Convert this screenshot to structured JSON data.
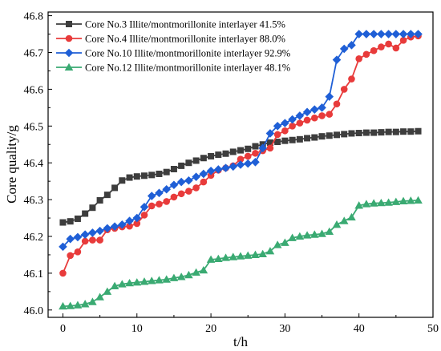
{
  "chart_data": {
    "type": "line",
    "xlabel": "t/h",
    "ylabel": "Core quality/g",
    "xlim": [
      -2,
      50
    ],
    "ylim": [
      45.98,
      46.81
    ],
    "xticks": [
      0,
      10,
      20,
      30,
      40,
      50
    ],
    "yticks": [
      46.0,
      46.1,
      46.2,
      46.3,
      46.4,
      46.5,
      46.6,
      46.7,
      46.8
    ],
    "xtick_labels": [
      "0",
      "10",
      "20",
      "30",
      "40",
      "50"
    ],
    "ytick_labels": [
      "46.0",
      "46.1",
      "46.2",
      "46.3",
      "46.4",
      "46.5",
      "46.6",
      "46.7",
      "46.8"
    ],
    "grid": false,
    "legend_position": "top-left",
    "x": [
      0,
      1,
      2,
      3,
      4,
      5,
      6,
      7,
      8,
      9,
      10,
      11,
      12,
      13,
      14,
      15,
      16,
      17,
      18,
      19,
      20,
      21,
      22,
      23,
      24,
      25,
      26,
      27,
      28,
      29,
      30,
      31,
      32,
      33,
      34,
      35,
      36,
      37,
      38,
      39,
      40,
      41,
      42,
      43,
      44,
      45,
      46,
      47,
      48
    ],
    "series": [
      {
        "name": "Core No.3  Illite/montmorillonite interlayer 41.5%",
        "color": "#3d3d3d",
        "marker": "square",
        "values": [
          46.238,
          46.241,
          46.248,
          46.262,
          46.278,
          46.298,
          46.313,
          46.332,
          46.352,
          46.36,
          46.363,
          46.365,
          46.367,
          46.37,
          46.375,
          46.383,
          46.392,
          46.4,
          46.406,
          46.413,
          46.418,
          46.422,
          46.425,
          46.43,
          46.434,
          46.438,
          46.445,
          46.45,
          46.455,
          46.457,
          46.46,
          46.462,
          46.464,
          46.467,
          46.469,
          46.472,
          46.474,
          46.476,
          46.478,
          46.48,
          46.481,
          46.482,
          46.482,
          46.483,
          46.484,
          46.484,
          46.485,
          46.485,
          46.486
        ]
      },
      {
        "name": "Core No.4  Illite/montmorillonite interlayer 88.0%",
        "color": "#e83b3b",
        "marker": "circle",
        "values": [
          46.1,
          46.148,
          46.158,
          46.187,
          46.19,
          46.19,
          46.218,
          46.222,
          46.226,
          46.228,
          46.235,
          46.258,
          46.283,
          46.288,
          46.295,
          46.307,
          46.316,
          46.323,
          46.332,
          46.348,
          46.366,
          46.38,
          46.386,
          46.392,
          46.41,
          46.418,
          46.426,
          46.433,
          46.44,
          46.477,
          46.487,
          46.5,
          46.508,
          46.516,
          46.522,
          46.528,
          46.532,
          46.56,
          46.6,
          46.628,
          46.683,
          46.695,
          46.705,
          46.715,
          46.723,
          46.712,
          46.733,
          46.742,
          46.745
        ]
      },
      {
        "name": "Core No.10 Illite/montmorillonite interlayer 92.9%",
        "color": "#1f5fd6",
        "marker": "diamond",
        "values": [
          46.172,
          46.193,
          46.198,
          46.205,
          46.21,
          46.215,
          46.222,
          46.227,
          46.232,
          46.242,
          46.25,
          46.28,
          46.31,
          46.318,
          46.328,
          46.34,
          46.348,
          46.352,
          46.362,
          46.37,
          46.378,
          46.382,
          46.386,
          46.39,
          46.395,
          46.398,
          46.402,
          46.44,
          46.48,
          46.5,
          46.508,
          46.518,
          46.528,
          46.538,
          46.545,
          46.55,
          46.58,
          46.68,
          46.71,
          46.72,
          46.75,
          46.75,
          46.75,
          46.75,
          46.75,
          46.75,
          46.75,
          46.75,
          46.75
        ]
      },
      {
        "name": "Core No.12 Illite/montmorillonite interlayer 48.1%",
        "color": "#3aaa72",
        "marker": "triangle",
        "values": [
          46.01,
          46.011,
          46.013,
          46.016,
          46.022,
          46.035,
          46.05,
          46.065,
          46.07,
          46.073,
          46.075,
          46.077,
          46.079,
          46.081,
          46.083,
          46.087,
          46.09,
          46.095,
          46.102,
          46.108,
          46.137,
          46.139,
          46.142,
          46.144,
          46.146,
          46.148,
          46.15,
          46.152,
          46.16,
          46.177,
          46.183,
          46.196,
          46.2,
          46.203,
          46.205,
          46.207,
          46.213,
          46.232,
          46.242,
          46.252,
          46.284,
          46.288,
          46.29,
          46.291,
          46.292,
          46.294,
          46.296,
          46.297,
          46.298
        ]
      }
    ]
  }
}
